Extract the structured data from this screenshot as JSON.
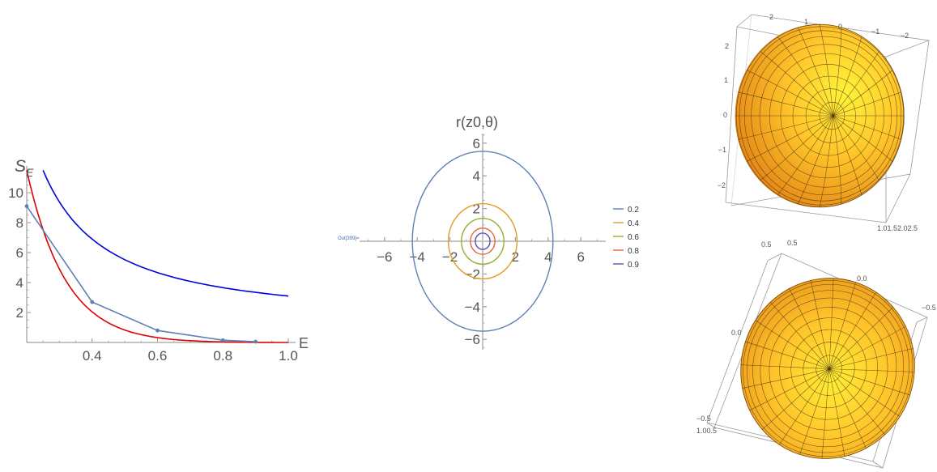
{
  "out_label": "Out[399]=",
  "chart_data": [
    {
      "type": "line",
      "xlabel": "E",
      "ylabel": "S_E",
      "xlim": [
        0.2,
        1.0
      ],
      "ylim": [
        0,
        12
      ],
      "x_ticks": [
        "0.4",
        "0.6",
        "0.8",
        "1.0"
      ],
      "y_ticks": [
        "2",
        "4",
        "6",
        "8",
        "10"
      ],
      "series": [
        {
          "color": "#5e81b5",
          "points": [
            [
              0.2,
              9.1
            ],
            [
              0.4,
              2.7
            ],
            [
              0.6,
              0.8
            ],
            [
              0.8,
              0.15
            ],
            [
              0.9,
              0.05
            ]
          ]
        },
        {
          "color": "#dd0000",
          "kind": "curve"
        },
        {
          "color": "#0000dd",
          "kind": "curve"
        }
      ]
    },
    {
      "type": "line",
      "title": "r(z0,θ)",
      "xlim": [
        -7.5,
        7.5
      ],
      "ylim": [
        -7,
        7
      ],
      "x_ticks": [
        "−6",
        "−4",
        "−2",
        "2",
        "4",
        "6"
      ],
      "y_ticks": [
        "6",
        "4",
        "2",
        "−2",
        "−4",
        "−6"
      ],
      "series": [
        {
          "name": "0.2",
          "color": "#5e81b5",
          "rx": 4.3,
          "ry": 5.5
        },
        {
          "name": "0.4",
          "color": "#e19c24",
          "rx": 2.1,
          "ry": 2.3
        },
        {
          "name": "0.6",
          "color": "#8fb032",
          "rx": 1.3,
          "ry": 1.4
        },
        {
          "name": "0.8",
          "color": "#eb6235",
          "rx": 0.75,
          "ry": 0.8
        },
        {
          "name": "0.9",
          "color": "#5f4fa8",
          "rx": 0.45,
          "ry": 0.5
        }
      ]
    },
    {
      "type": "surface-3d",
      "top_ticks": [
        "2",
        "1",
        "0",
        "−1",
        "−2"
      ],
      "left_ticks": [
        "2",
        "1",
        "0",
        "−1",
        "−2"
      ],
      "bottom_label": "1.01.52.02.5"
    },
    {
      "type": "surface-3d",
      "top_ticks": [
        "0.5",
        "0.5",
        "0.0",
        "−0.5"
      ],
      "left_ticks": [
        "0.0",
        "−0.5"
      ],
      "bottom_label": "1.00.5"
    }
  ]
}
